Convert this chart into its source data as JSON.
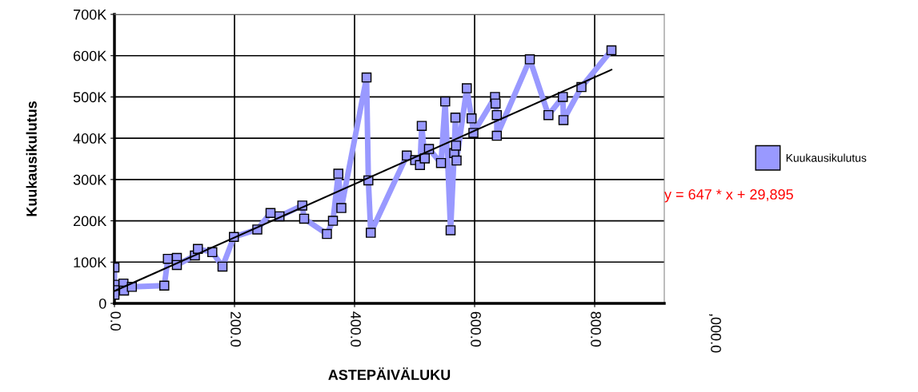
{
  "chart_data": {
    "type": "line",
    "xlabel": "ASTEPÄIVÄLUKU",
    "ylabel": "Kuukausikulutus",
    "xlim": [
      0,
      916
    ],
    "ylim": [
      0,
      700000
    ],
    "xticks": [
      {
        "value": 0,
        "label": "0.0"
      },
      {
        "value": 200,
        "label": "200.0"
      },
      {
        "value": 400,
        "label": "400.0"
      },
      {
        "value": 600,
        "label": "600.0"
      },
      {
        "value": 800,
        "label": "800.0"
      }
    ],
    "yticks": [
      {
        "value": 0,
        "label": "0"
      },
      {
        "value": 100000,
        "label": "100K"
      },
      {
        "value": 200000,
        "label": "200K"
      },
      {
        "value": 300000,
        "label": "300K"
      },
      {
        "value": 400000,
        "label": "400K"
      },
      {
        "value": 500000,
        "label": "500K"
      },
      {
        "value": 600000,
        "label": "600K"
      },
      {
        "value": 700000,
        "label": "700K"
      }
    ],
    "grid": true,
    "legend": "right",
    "marker": "square",
    "line_style": "solid",
    "series": [
      {
        "name": "Kuukausikulutus",
        "color": "#9999ff",
        "x": [
          0,
          0,
          0,
          0,
          15,
          16,
          29,
          83,
          89,
          104,
          104,
          134,
          139,
          163,
          180,
          199,
          238,
          260,
          275,
          313,
          316,
          354,
          364,
          373,
          378,
          420,
          423,
          427,
          487,
          501,
          509,
          512,
          517,
          524,
          544,
          551,
          560,
          566,
          568,
          569,
          570,
          587,
          595,
          598,
          634,
          635,
          637,
          637,
          692,
          723,
          747,
          748,
          778,
          828
        ],
        "values": [
          87000,
          45000,
          32000,
          21000,
          48000,
          31000,
          40000,
          43000,
          108000,
          110000,
          93000,
          116000,
          132000,
          124000,
          89000,
          161000,
          179000,
          219000,
          211000,
          237000,
          205000,
          168000,
          200000,
          314000,
          231000,
          547000,
          298000,
          171000,
          358000,
          347000,
          335000,
          430000,
          351000,
          374000,
          340000,
          489000,
          177000,
          364000,
          450000,
          382000,
          346000,
          521000,
          448000,
          413000,
          500000,
          484000,
          456000,
          406000,
          591000,
          456000,
          500000,
          444000,
          524000,
          613000
        ]
      },
      {
        "type": "line",
        "color": "#000000",
        "marker": "none",
        "x": [
          0,
          828
        ],
        "values": [
          30000,
          566000
        ]
      }
    ],
    "annotations": [
      "y = 647 * x + 29,895",
      ",000.0"
    ]
  }
}
